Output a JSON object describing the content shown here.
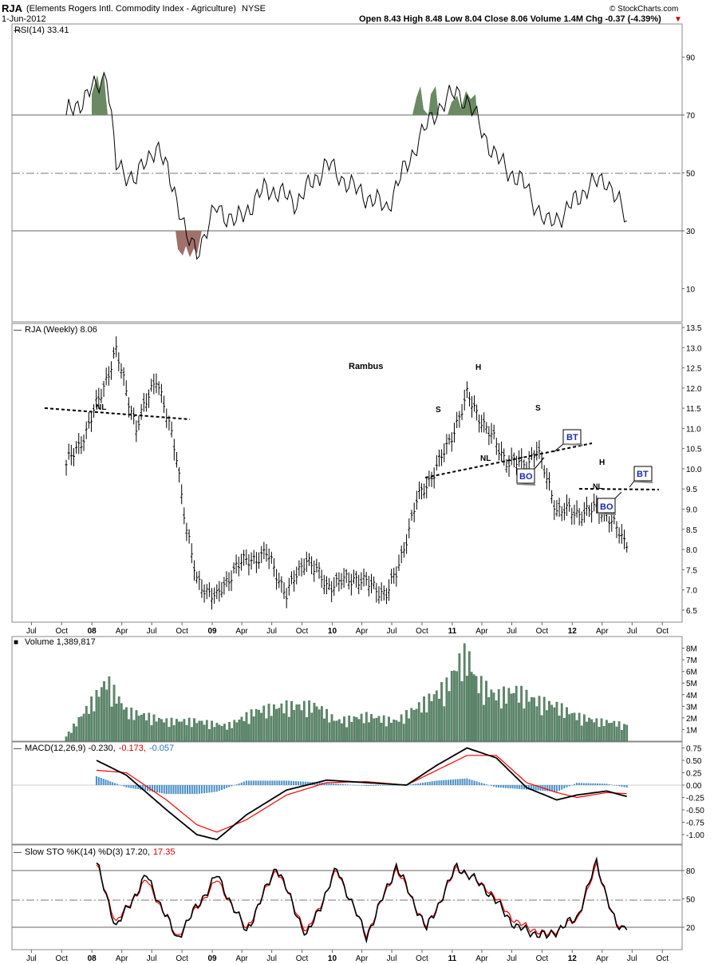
{
  "header": {
    "symbol": "RJA",
    "description": "(Elements Rogers Intl. Commodity Index - Agriculture)",
    "exchange": "NYSE",
    "date": "1-Jun-2012",
    "quote": "Open 8.43  High 8.48  Low 8.04  Close 8.06  Volume 1.4M  Chg -0.37 (-4.39%)",
    "copyright": "© StockCharts.com"
  },
  "panels": {
    "rsi": {
      "label": "RSI(14) 33.41",
      "ticks": [
        "90",
        "70",
        "50",
        "30",
        "10"
      ]
    },
    "price": {
      "label": "RJA (Weekly) 8.06",
      "ticks": [
        "13.5",
        "13.0",
        "12.5",
        "12.0",
        "11.5",
        "11.0",
        "10.5",
        "10.0",
        "9.5",
        "9.0",
        "8.5",
        "8.0",
        "7.5",
        "7.0",
        "6.5"
      ]
    },
    "volume": {
      "label": "Volume 1,389,817",
      "ticks": [
        "8M",
        "7M",
        "6M",
        "5M",
        "4M",
        "3M",
        "2M",
        "1M"
      ]
    },
    "macd": {
      "label_main": "MACD(12,26,9) -0.230,",
      "label_signal": "-0.173,",
      "label_hist": "-0.057",
      "ticks": [
        "0.75",
        "0.50",
        "0.25",
        "0.00",
        "-0.25",
        "-0.50",
        "-0.75",
        "-1.00"
      ]
    },
    "sto": {
      "label_main": "Slow STO %K(14) %D(3) 17.20,",
      "label_d": "17.35",
      "ticks": [
        "80",
        "50",
        "20"
      ]
    }
  },
  "x_axis_labels": [
    "Jul",
    "Oct",
    "08",
    "Apr",
    "Jul",
    "Oct",
    "09",
    "Apr",
    "Jul",
    "Oct",
    "10",
    "Apr",
    "Jul",
    "Oct",
    "11",
    "Apr",
    "Jul",
    "Oct",
    "12",
    "Apr",
    "Jul",
    "Oct"
  ],
  "annotations": {
    "author": "Rambus",
    "nl_left": "NL",
    "s_left": "S",
    "h_main": "H",
    "s_right": "S",
    "nl_main": "NL",
    "bt_1": "BT",
    "bo_1": "BO",
    "h_small": "H",
    "nl_small": "NL",
    "bt_2": "BT",
    "bo_2": "BO"
  },
  "colors": {
    "up_bar": "#000000",
    "volume_bar": "#5a8a6a",
    "rsi_overbought_fill": "#6b8a63",
    "rsi_oversold_fill": "#a0706b",
    "macd_hist": "#4a90c8",
    "signal_line": "#ff0000",
    "callout_text": "#1a2bb0"
  },
  "chart_data": [
    {
      "type": "line",
      "name": "RSI(14)",
      "ylim": [
        0,
        100
      ],
      "reference_levels": [
        70,
        50,
        30
      ],
      "x": [
        "2007-10",
        "2008-01",
        "2008-02",
        "2008-03",
        "2008-05",
        "2008-07",
        "2008-09",
        "2008-10",
        "2008-11",
        "2009-01",
        "2009-03",
        "2009-06",
        "2009-09",
        "2009-12",
        "2010-03",
        "2010-06",
        "2010-09",
        "2010-11",
        "2011-01",
        "2011-02",
        "2011-05",
        "2011-08",
        "2011-10",
        "2011-12",
        "2012-02",
        "2012-04",
        "2012-06"
      ],
      "values": [
        70,
        80,
        85,
        52,
        48,
        60,
        42,
        27,
        23,
        38,
        33,
        45,
        40,
        53,
        44,
        38,
        60,
        72,
        78,
        75,
        55,
        45,
        32,
        37,
        45,
        48,
        33.41
      ]
    },
    {
      "type": "line",
      "name": "RJA (Weekly) close",
      "ylim": [
        6.2,
        13.6
      ],
      "x": [
        "2007-10",
        "2007-12",
        "2008-03",
        "2008-05",
        "2008-07",
        "2008-09",
        "2008-10",
        "2008-11",
        "2009-01",
        "2009-03",
        "2009-06",
        "2009-08",
        "2009-10",
        "2009-12",
        "2010-03",
        "2010-06",
        "2010-07",
        "2010-09",
        "2010-10",
        "2010-12",
        "2011-02",
        "2011-04",
        "2011-06",
        "2011-08",
        "2011-09",
        "2011-11",
        "2012-01",
        "2012-03",
        "2012-04",
        "2012-05",
        "2012-06"
      ],
      "values": [
        10.1,
        10.9,
        12.9,
        11.0,
        12.3,
        10.3,
        8.5,
        7.2,
        6.8,
        7.6,
        7.9,
        6.9,
        7.8,
        7.1,
        7.3,
        6.9,
        7.4,
        9.2,
        9.6,
        10.5,
        11.8,
        11.0,
        10.2,
        10.1,
        10.5,
        9.0,
        8.9,
        9.0,
        8.9,
        8.5,
        8.06
      ]
    },
    {
      "type": "bar",
      "name": "Volume",
      "ylim": [
        0,
        9000000
      ],
      "x": [
        "2007-10",
        "2008-01",
        "2008-02",
        "2008-04",
        "2008-08",
        "2008-11",
        "2009-02",
        "2009-05",
        "2009-08",
        "2009-11",
        "2010-01",
        "2010-04",
        "2010-07",
        "2010-10",
        "2010-12",
        "2011-01",
        "2011-02",
        "2011-03",
        "2011-05",
        "2011-07",
        "2011-09",
        "2011-11",
        "2012-01",
        "2012-03",
        "2012-05",
        "2012-06"
      ],
      "values": [
        500000,
        4500000,
        6000000,
        3000000,
        2000000,
        2000000,
        1500000,
        3000000,
        3500000,
        3500000,
        2000000,
        2500000,
        2000000,
        4000000,
        5500000,
        7500000,
        8700000,
        6000000,
        4500000,
        5000000,
        4000000,
        3500000,
        2500000,
        2000000,
        1800000,
        1389817
      ]
    },
    {
      "type": "line",
      "name": "MACD(12,26,9)",
      "ylim": [
        -1.1,
        0.85
      ],
      "x": [
        "2008-01",
        "2008-04",
        "2008-08",
        "2008-11",
        "2009-01",
        "2009-04",
        "2009-08",
        "2009-12",
        "2010-04",
        "2010-08",
        "2010-11",
        "2011-02",
        "2011-05",
        "2011-08",
        "2011-11",
        "2012-01",
        "2012-04",
        "2012-06"
      ],
      "series": [
        {
          "name": "MACD",
          "values": [
            0.5,
            0.2,
            -0.5,
            -1.0,
            -1.1,
            -0.6,
            -0.1,
            0.1,
            0.05,
            0.0,
            0.4,
            0.75,
            0.55,
            -0.05,
            -0.3,
            -0.2,
            -0.12,
            -0.23
          ]
        },
        {
          "name": "Signal",
          "values": [
            0.3,
            0.25,
            -0.3,
            -0.8,
            -0.95,
            -0.7,
            -0.2,
            0.05,
            0.07,
            0.0,
            0.3,
            0.6,
            0.6,
            0.05,
            -0.15,
            -0.25,
            -0.15,
            -0.173
          ]
        }
      ]
    },
    {
      "type": "line",
      "name": "Slow STO %K(14) %D(3)",
      "ylim": [
        0,
        100
      ],
      "reference_levels": [
        80,
        50,
        20
      ],
      "x": [
        "2008-01",
        "2008-03",
        "2008-06",
        "2008-09",
        "2009-01",
        "2009-04",
        "2009-07",
        "2009-10",
        "2010-01",
        "2010-04",
        "2010-07",
        "2010-10",
        "2011-01",
        "2011-04",
        "2011-07",
        "2011-10",
        "2012-01",
        "2012-03",
        "2012-05",
        "2012-06"
      ],
      "series": [
        {
          "name": "%K",
          "values": [
            88,
            20,
            75,
            8,
            75,
            15,
            85,
            10,
            82,
            10,
            85,
            18,
            85,
            60,
            20,
            10,
            30,
            88,
            20,
            17.2
          ]
        },
        {
          "name": "%D",
          "values": [
            86,
            25,
            70,
            10,
            70,
            18,
            82,
            14,
            80,
            12,
            82,
            20,
            83,
            62,
            25,
            12,
            28,
            85,
            22,
            17.35
          ]
        }
      ]
    }
  ]
}
